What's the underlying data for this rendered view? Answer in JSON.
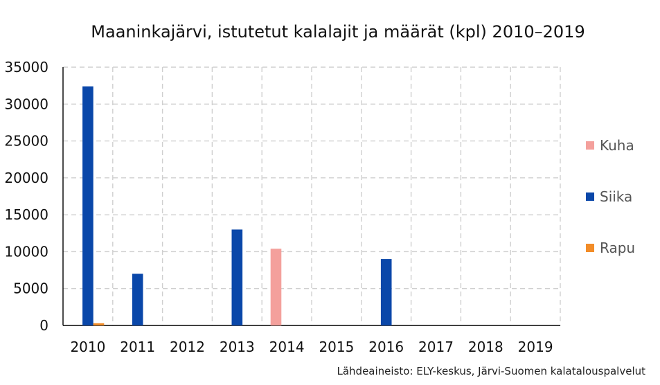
{
  "chart_data": {
    "type": "bar",
    "title": "Maaninkajärvi, istutetut kalalajit ja määrät (kpl) 2010–2019",
    "source_note": "Lähdeaineisto: ELY-keskus, Järvi-Suomen kalatalouspalvelut",
    "categories": [
      "2010",
      "2011",
      "2012",
      "2013",
      "2014",
      "2015",
      "2016",
      "2017",
      "2018",
      "2019"
    ],
    "series": [
      {
        "name": "Kuha",
        "color": "#F4A09C",
        "values": [
          0,
          0,
          0,
          0,
          10400,
          0,
          0,
          0,
          0,
          0
        ]
      },
      {
        "name": "Siika",
        "color": "#0A47A9",
        "values": [
          32400,
          7000,
          0,
          13000,
          0,
          0,
          9000,
          0,
          0,
          0
        ]
      },
      {
        "name": "Rapu",
        "color": "#F28C28",
        "values": [
          300,
          0,
          0,
          0,
          0,
          0,
          0,
          0,
          0,
          0
        ]
      }
    ],
    "ylim": [
      0,
      35000
    ],
    "yticks": [
      "0",
      "5000",
      "10000",
      "15000",
      "20000",
      "25000",
      "30000",
      "35000"
    ],
    "grid": true,
    "legend_position": "right"
  }
}
